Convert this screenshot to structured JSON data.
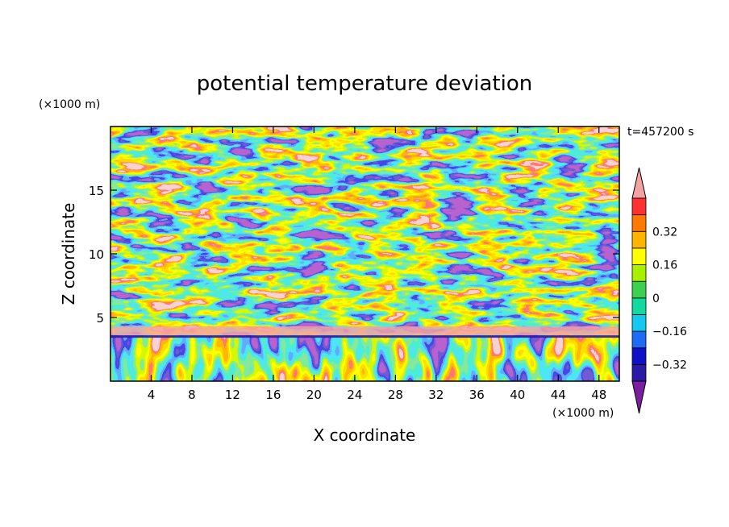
{
  "chart_data": {
    "type": "heatmap",
    "title": "potential temperature deviation",
    "xlabel": "X coordinate",
    "ylabel": "Z coordinate",
    "x_unit": "(×1000 m)",
    "y_unit": "(×1000 m)",
    "time_label": "t=457200 s",
    "xlim": [
      0,
      50
    ],
    "ylim": [
      0,
      20
    ],
    "x_ticks": [
      "4",
      "8",
      "12",
      "16",
      "20",
      "24",
      "28",
      "32",
      "36",
      "40",
      "44",
      "48"
    ],
    "y_ticks": [
      "5",
      "10",
      "15"
    ],
    "x_tick_values": [
      4,
      8,
      12,
      16,
      20,
      24,
      28,
      32,
      36,
      40,
      44,
      48
    ],
    "y_tick_values": [
      5,
      10,
      15
    ],
    "colorbar": {
      "levels": [
        -0.48,
        -0.4,
        -0.32,
        -0.24,
        -0.16,
        -0.08,
        0,
        0.08,
        0.16,
        0.24,
        0.32,
        0.4,
        0.48
      ],
      "tick_values": [
        0.32,
        0.16,
        0,
        -0.16,
        -0.32
      ],
      "tick_labels": [
        "0.32",
        "0.16",
        "0",
        "−0.16",
        "−0.32"
      ],
      "colors": [
        "#7a1fa0",
        "#2b1aa5",
        "#1010c8",
        "#1e6cf5",
        "#14c8f0",
        "#13d8a0",
        "#3cd050",
        "#a8f000",
        "#ffff00",
        "#ffb400",
        "#ff7a00",
        "#ff3030",
        "#f4a3a3"
      ],
      "extend": "both"
    },
    "regions": [
      {
        "band": "z 0.5–3.5, lower layer",
        "values_range": [
          -0.48,
          0.4
        ]
      },
      {
        "band": "z ≈ 4, thin warm layer",
        "values_range": [
          0.4,
          0.48
        ]
      },
      {
        "band": "z 5–20, mixed turbulent layer",
        "values_range": [
          -0.48,
          0.48
        ]
      }
    ]
  }
}
